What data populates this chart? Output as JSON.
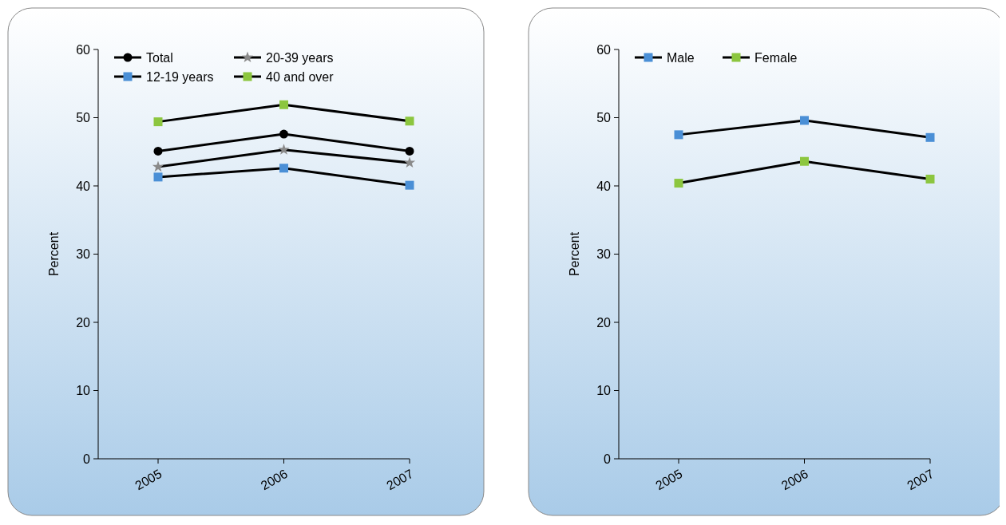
{
  "chart_data": [
    {
      "type": "line",
      "categories": [
        "2005",
        "2006",
        "2007"
      ],
      "ylabel": "Percent",
      "ylim": [
        0,
        60
      ],
      "yticks": [
        0,
        10,
        20,
        30,
        40,
        50,
        60
      ],
      "legend": "top left",
      "grid": false,
      "series": [
        {
          "name": "Total",
          "color": "#000000",
          "marker": "circle",
          "values": [
            45.1,
            47.6,
            45.1
          ]
        },
        {
          "name": "20-39 years",
          "color": "#8a8a8a",
          "marker": "star",
          "values": [
            42.8,
            45.3,
            43.4
          ]
        },
        {
          "name": "12-19 years",
          "color": "#4a8fd6",
          "marker": "square",
          "values": [
            41.3,
            42.6,
            40.1
          ]
        },
        {
          "name": "40 and over",
          "color": "#8cc63f",
          "marker": "square",
          "values": [
            49.4,
            51.9,
            49.5
          ]
        }
      ]
    },
    {
      "type": "line",
      "categories": [
        "2005",
        "2006",
        "2007"
      ],
      "ylabel": "Percent",
      "ylim": [
        0,
        60
      ],
      "yticks": [
        0,
        10,
        20,
        30,
        40,
        50,
        60
      ],
      "legend": "top left",
      "grid": false,
      "series": [
        {
          "name": "Male",
          "color": "#4a8fd6",
          "marker": "square",
          "values": [
            47.5,
            49.6,
            47.1
          ]
        },
        {
          "name": "Female",
          "color": "#8cc63f",
          "marker": "square",
          "values": [
            40.4,
            43.6,
            41.0
          ]
        }
      ]
    }
  ]
}
